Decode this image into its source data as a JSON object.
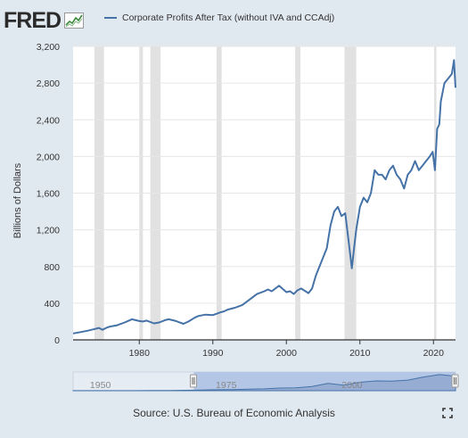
{
  "header": {
    "logo_text": "FRED",
    "logo_icon": "fred-chart-icon",
    "legend_label": "Corporate Profits After Tax (without IVA and CCAdj)"
  },
  "colors": {
    "series": "#4572a7",
    "recession": "#e1e1e1",
    "background": "#e1e9f0",
    "navigator_fill": "#b4c6e6"
  },
  "chart_data": {
    "type": "line",
    "ylabel": "Billions of Dollars",
    "xlim": [
      1971,
      2023
    ],
    "ylim": [
      0,
      3200
    ],
    "yticks": [
      "0",
      "400",
      "800",
      "1,200",
      "1,600",
      "2,000",
      "2,400",
      "2,800",
      "3,200"
    ],
    "xticks": [
      "1980",
      "1990",
      "2000",
      "2010",
      "2020"
    ],
    "grid": "horizontal",
    "recessions": [
      [
        1973.9,
        1975.2
      ],
      [
        1980.0,
        1980.5
      ],
      [
        1981.5,
        1982.9
      ],
      [
        1990.5,
        1991.2
      ],
      [
        2001.2,
        2001.9
      ],
      [
        2007.9,
        2009.5
      ],
      [
        2020.1,
        2020.4
      ]
    ],
    "series": [
      {
        "name": "Corporate Profits After Tax (without IVA and CCAdj)",
        "x": [
          1971.0,
          1972.0,
          1973.0,
          1974.0,
          1974.5,
          1975.0,
          1975.5,
          1976.0,
          1977.0,
          1978.0,
          1979.0,
          1980.0,
          1980.5,
          1981.0,
          1982.0,
          1982.7,
          1983.5,
          1984.0,
          1985.0,
          1985.5,
          1986.0,
          1986.7,
          1987.5,
          1988.0,
          1989.0,
          1990.0,
          1990.7,
          1991.0,
          1991.5,
          1992.0,
          1993.0,
          1994.0,
          1995.0,
          1996.0,
          1997.0,
          1997.5,
          1998.0,
          1998.5,
          1999.0,
          2000.0,
          2000.5,
          2001.0,
          2001.5,
          2002.0,
          2003.0,
          2003.5,
          2004.0,
          2004.5,
          2005.0,
          2005.5,
          2006.0,
          2006.5,
          2007.0,
          2007.5,
          2008.0,
          2008.5,
          2008.9,
          2009.2,
          2009.5,
          2010.0,
          2010.5,
          2011.0,
          2011.5,
          2012.0,
          2012.5,
          2013.0,
          2013.5,
          2014.0,
          2014.5,
          2015.0,
          2015.5,
          2016.0,
          2016.5,
          2017.0,
          2017.5,
          2018.0,
          2018.5,
          2019.0,
          2019.5,
          2019.9,
          2020.2,
          2020.5,
          2020.8,
          2021.0,
          2021.5,
          2022.0,
          2022.5,
          2022.8,
          2023.0
        ],
        "values": [
          70,
          85,
          100,
          120,
          130,
          110,
          130,
          145,
          160,
          190,
          225,
          205,
          200,
          210,
          180,
          190,
          215,
          225,
          205,
          190,
          175,
          200,
          240,
          260,
          275,
          270,
          290,
          300,
          310,
          330,
          350,
          380,
          440,
          500,
          530,
          550,
          530,
          560,
          590,
          520,
          530,
          500,
          540,
          560,
          510,
          560,
          700,
          800,
          900,
          1000,
          1250,
          1400,
          1450,
          1350,
          1380,
          1050,
          780,
          1000,
          1200,
          1450,
          1550,
          1500,
          1600,
          1850,
          1800,
          1800,
          1750,
          1850,
          1900,
          1800,
          1750,
          1650,
          1800,
          1850,
          1950,
          1850,
          1900,
          1950,
          2000,
          2050,
          1850,
          2300,
          2350,
          2600,
          2800,
          2850,
          2900,
          3050,
          2750
        ]
      }
    ]
  },
  "navigator": {
    "labels": [
      "1950",
      "1975",
      "2000"
    ],
    "xlim": [
      1947,
      2023
    ],
    "selected_range": [
      1971,
      2023
    ],
    "series_values": [
      10,
      12,
      15,
      20,
      25,
      35,
      50,
      80,
      120,
      180,
      220,
      280,
      350,
      500,
      550,
      800,
      1400,
      1050,
      1600,
      1850,
      1800,
      2000,
      2600,
      3050,
      2750
    ]
  },
  "footer": {
    "source": "Source: U.S. Bureau of Economic Analysis",
    "expand_icon": "expand-icon"
  }
}
